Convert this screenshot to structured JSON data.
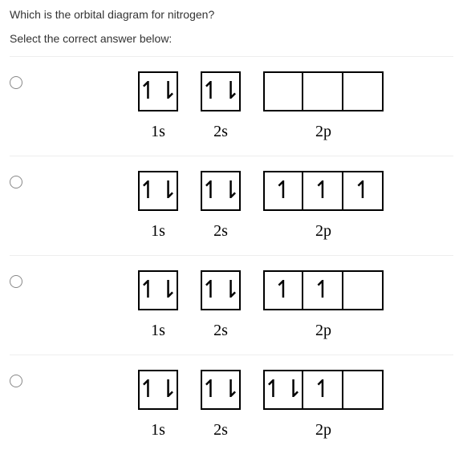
{
  "question": "Which is the orbital diagram for nitrogen?",
  "prompt": "Select the correct answer below:",
  "arrows": {
    "up": "↿",
    "down": "⇂",
    "updown": "↿⇂",
    "empty": ""
  },
  "options": [
    {
      "groups": [
        {
          "label": "1s",
          "cells": [
            "updown"
          ]
        },
        {
          "label": "2s",
          "cells": [
            "updown"
          ]
        },
        {
          "label": "2p",
          "cells": [
            "empty",
            "empty",
            "empty"
          ]
        }
      ]
    },
    {
      "groups": [
        {
          "label": "1s",
          "cells": [
            "updown"
          ]
        },
        {
          "label": "2s",
          "cells": [
            "updown"
          ]
        },
        {
          "label": "2p",
          "cells": [
            "up",
            "up",
            "up"
          ]
        }
      ]
    },
    {
      "groups": [
        {
          "label": "1s",
          "cells": [
            "updown"
          ]
        },
        {
          "label": "2s",
          "cells": [
            "updown"
          ]
        },
        {
          "label": "2p",
          "cells": [
            "up",
            "up",
            "empty"
          ]
        }
      ]
    },
    {
      "groups": [
        {
          "label": "1s",
          "cells": [
            "updown"
          ]
        },
        {
          "label": "2s",
          "cells": [
            "updown"
          ]
        },
        {
          "label": "2p",
          "cells": [
            "updown",
            "up",
            "empty"
          ]
        }
      ]
    }
  ],
  "colors": {
    "border": "#000000",
    "divider": "#eeeeee",
    "radio_border": "#888888",
    "text": "#333333",
    "bg": "#ffffff"
  }
}
